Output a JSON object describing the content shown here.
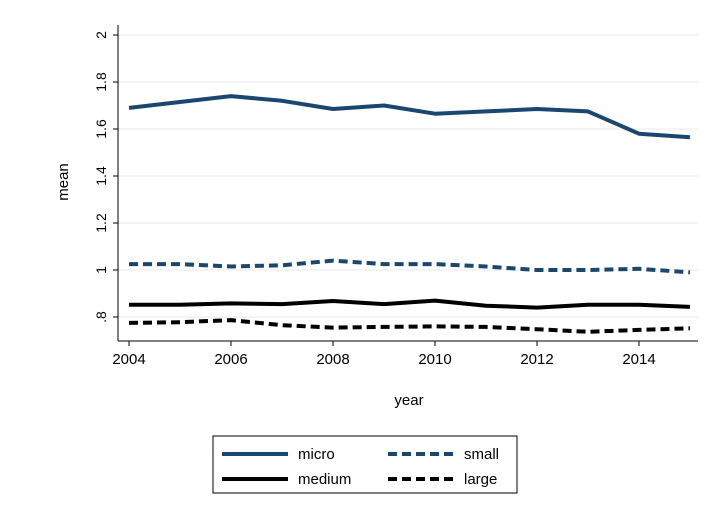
{
  "chart_data": {
    "type": "line",
    "xlabel": "year",
    "ylabel": "mean",
    "xlim": [
      2004,
      2015
    ],
    "ylim": [
      0.7,
      2.0
    ],
    "x_ticks": [
      "2004",
      "2006",
      "2008",
      "2010",
      "2012",
      "2014"
    ],
    "y_ticks": [
      ".8",
      "1",
      "1.2",
      "1.4",
      "1.6",
      "1.8",
      "2"
    ],
    "grid": true,
    "legend_position": "bottom",
    "x": [
      2004,
      2005,
      2006,
      2007,
      2008,
      2009,
      2010,
      2011,
      2012,
      2013,
      2014,
      2015
    ],
    "series": [
      {
        "name": "micro",
        "color": "#1a476f",
        "dash": "solid",
        "values": [
          1.69,
          1.715,
          1.74,
          1.72,
          1.685,
          1.7,
          1.665,
          1.675,
          1.685,
          1.675,
          1.58,
          1.565
        ]
      },
      {
        "name": "small",
        "color": "#1a476f",
        "dash": "dashed",
        "values": [
          1.025,
          1.025,
          1.015,
          1.02,
          1.04,
          1.025,
          1.025,
          1.015,
          1.0,
          1.0,
          1.005,
          0.99
        ]
      },
      {
        "name": "medium",
        "color": "#000000",
        "dash": "solid",
        "values": [
          0.852,
          0.852,
          0.858,
          0.855,
          0.868,
          0.855,
          0.87,
          0.848,
          0.84,
          0.852,
          0.852,
          0.843
        ]
      },
      {
        "name": "large",
        "color": "#000000",
        "dash": "dashed",
        "values": [
          0.775,
          0.778,
          0.787,
          0.765,
          0.755,
          0.758,
          0.76,
          0.758,
          0.748,
          0.737,
          0.745,
          0.752
        ]
      }
    ]
  }
}
